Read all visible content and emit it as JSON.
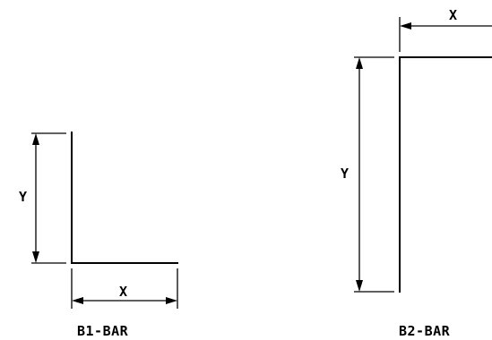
{
  "diagrams": [
    {
      "caption": "B1-BAR",
      "dim_x_label": "X",
      "dim_y_label": "Y"
    },
    {
      "caption": "B2-BAR",
      "dim_x_label": "X",
      "dim_y_label": "Y"
    }
  ]
}
